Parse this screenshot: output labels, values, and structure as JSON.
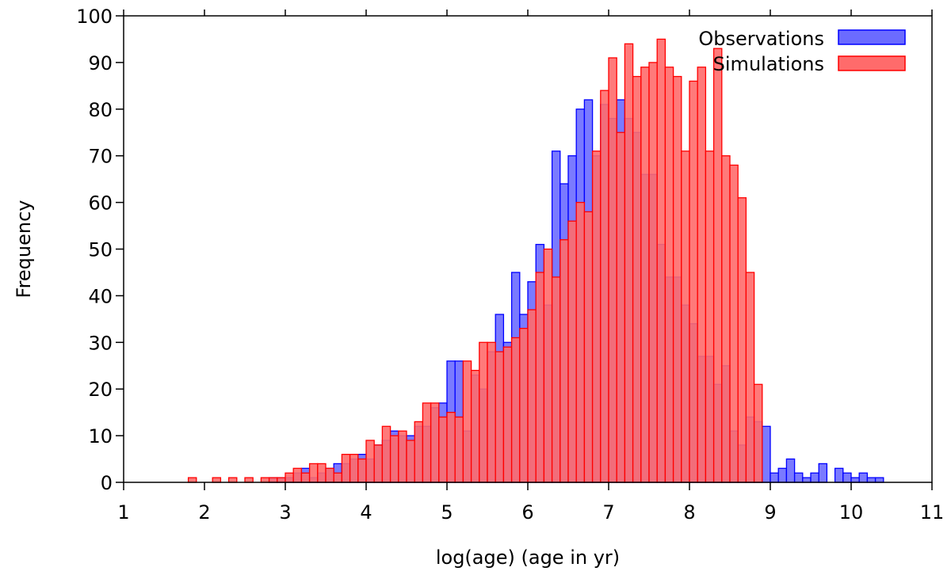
{
  "chart_data": {
    "type": "bar",
    "subtype": "overlaid-histogram",
    "title": "",
    "xlabel": "log(age) (age in yr)",
    "ylabel": "Frequency",
    "xlim": [
      1,
      11
    ],
    "ylim": [
      0,
      100
    ],
    "xticks": [
      1,
      2,
      3,
      4,
      5,
      6,
      7,
      8,
      9,
      10,
      11
    ],
    "yticks": [
      0,
      10,
      20,
      30,
      40,
      50,
      60,
      70,
      80,
      90,
      100
    ],
    "bin_width": 0.1,
    "grid": false,
    "legend_position": "top-right",
    "series": [
      {
        "name": "Observations",
        "color": "#0000ff",
        "fill": "#6b6bff",
        "x": [
          2.8,
          2.9,
          3.0,
          3.1,
          3.2,
          3.3,
          3.4,
          3.5,
          3.6,
          3.7,
          3.8,
          3.9,
          4.0,
          4.1,
          4.2,
          4.3,
          4.4,
          4.5,
          4.6,
          4.7,
          4.8,
          4.9,
          5.0,
          5.1,
          5.2,
          5.3,
          5.4,
          5.5,
          5.6,
          5.7,
          5.8,
          5.9,
          6.0,
          6.1,
          6.2,
          6.3,
          6.4,
          6.5,
          6.6,
          6.7,
          6.8,
          6.9,
          7.0,
          7.1,
          7.2,
          7.3,
          7.4,
          7.5,
          7.6,
          7.7,
          7.8,
          7.9,
          8.0,
          8.1,
          8.2,
          8.3,
          8.4,
          8.5,
          8.6,
          8.7,
          8.8,
          8.9,
          9.0,
          9.1,
          9.2,
          9.3,
          9.4,
          9.5,
          9.6,
          9.7,
          9.8,
          9.9,
          10.0,
          10.1,
          10.2,
          10.3
        ],
        "values": [
          1,
          1,
          1,
          2,
          3,
          1,
          2,
          3,
          4,
          4,
          5,
          6,
          5,
          8,
          9,
          11,
          10,
          10,
          12,
          12,
          16,
          17,
          26,
          26,
          11,
          23,
          20,
          28,
          36,
          30,
          45,
          36,
          43,
          51,
          38,
          71,
          64,
          70,
          80,
          82,
          70,
          81,
          78,
          82,
          78,
          75,
          66,
          66,
          51,
          44,
          44,
          38,
          34,
          27,
          27,
          21,
          25,
          11,
          8,
          14,
          13,
          12,
          2,
          3,
          5,
          2,
          1,
          2,
          4,
          0,
          3,
          2,
          1,
          2,
          1,
          1
        ],
        "note_last_nonzero": 10.3
      },
      {
        "name": "Simulations",
        "color": "#ff0000",
        "fill": "#ff6b6b",
        "x": [
          1.8,
          1.9,
          2.0,
          2.1,
          2.2,
          2.3,
          2.4,
          2.5,
          2.6,
          2.7,
          2.8,
          2.9,
          3.0,
          3.1,
          3.2,
          3.3,
          3.4,
          3.5,
          3.6,
          3.7,
          3.8,
          3.9,
          4.0,
          4.1,
          4.2,
          4.3,
          4.4,
          4.5,
          4.6,
          4.7,
          4.8,
          4.9,
          5.0,
          5.1,
          5.2,
          5.3,
          5.4,
          5.5,
          5.6,
          5.7,
          5.8,
          5.9,
          6.0,
          6.1,
          6.2,
          6.3,
          6.4,
          6.5,
          6.6,
          6.7,
          6.8,
          6.9,
          7.0,
          7.1,
          7.2,
          7.3,
          7.4,
          7.5,
          7.6,
          7.7,
          7.8,
          7.9,
          8.0,
          8.1,
          8.2,
          8.3,
          8.4,
          8.5,
          8.6,
          8.7,
          8.8
        ],
        "values": [
          1,
          0,
          0,
          1,
          0,
          1,
          0,
          1,
          0,
          1,
          1,
          1,
          2,
          3,
          2,
          4,
          4,
          3,
          2,
          6,
          6,
          5,
          9,
          8,
          12,
          10,
          11,
          9,
          13,
          17,
          17,
          14,
          15,
          14,
          26,
          24,
          30,
          30,
          28,
          29,
          31,
          33,
          37,
          45,
          50,
          44,
          52,
          56,
          60,
          58,
          71,
          84,
          91,
          75,
          94,
          87,
          89,
          90,
          95,
          89,
          87,
          71,
          86,
          89,
          71,
          93,
          70,
          68,
          61,
          45,
          21
        ],
        "note_last_nonzero": 8.8
      }
    ]
  }
}
